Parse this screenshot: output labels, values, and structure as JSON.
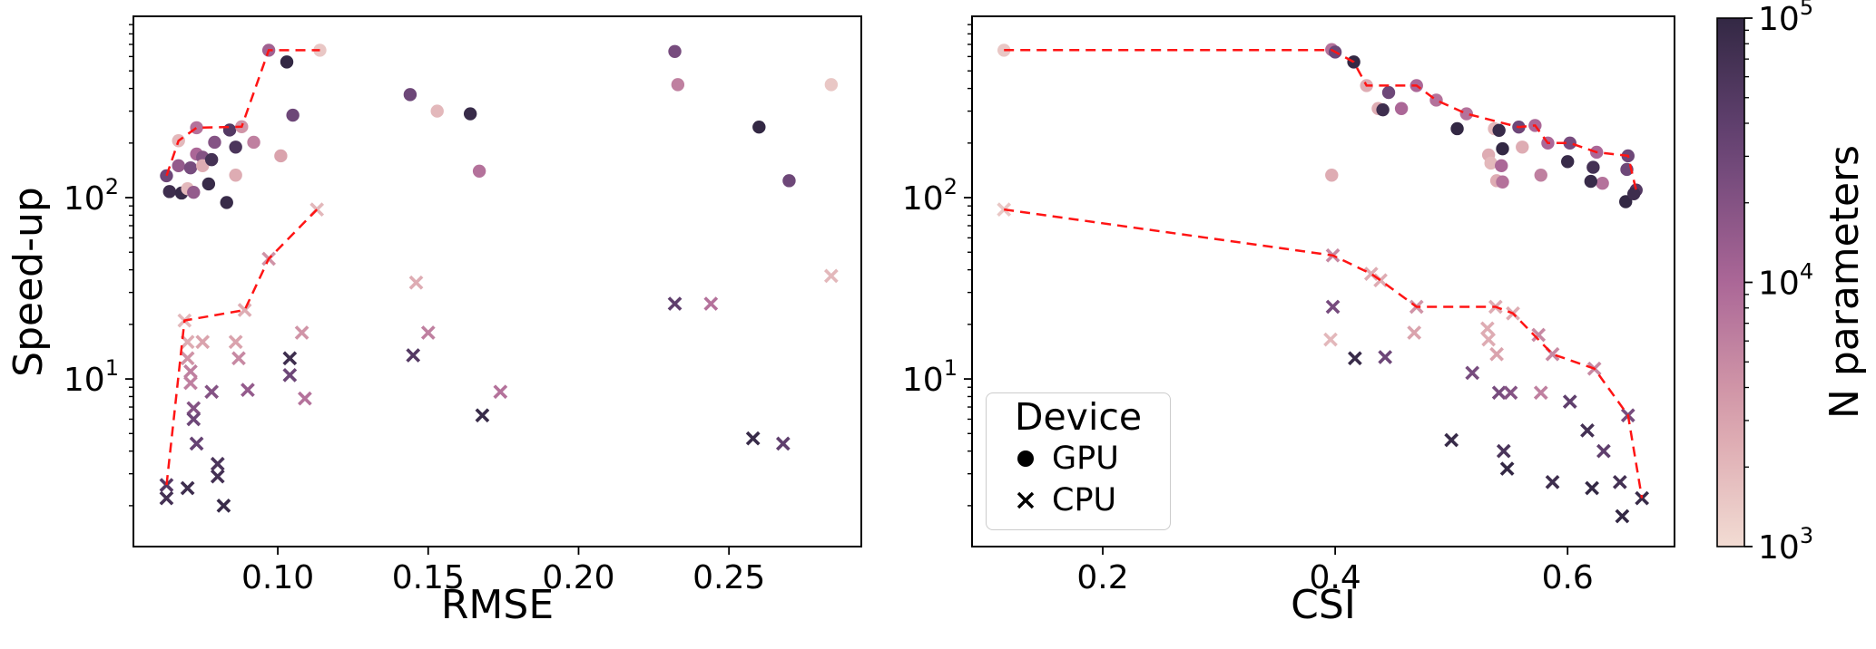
{
  "figure": {
    "background": "#ffffff"
  },
  "legend": {
    "title": "Device",
    "items": [
      {
        "label": "GPU",
        "marker": "circle"
      },
      {
        "label": "CPU",
        "marker": "x"
      }
    ]
  },
  "colorbar": {
    "label": "N parameters",
    "scale": "log",
    "vmin": 1000,
    "vmax": 100000,
    "tick_exponents": [
      5,
      4,
      3
    ]
  },
  "style": {
    "front_color": "#ff1414",
    "axis_color": "#000000",
    "colormap_stops": [
      [
        3.0,
        "#f2dcd3"
      ],
      [
        3.5,
        "#d9a0ab"
      ],
      [
        4.0,
        "#ab6797"
      ],
      [
        4.5,
        "#6a4577"
      ],
      [
        5.0,
        "#332844"
      ]
    ]
  },
  "chart_data": [
    {
      "type": "scatter",
      "xlabel": "RMSE",
      "ylabel": "Speed-up",
      "x_axis": {
        "scale": "linear",
        "lim": [
          0.052,
          0.294
        ],
        "ticks": [
          0.1,
          0.15,
          0.2,
          0.25
        ],
        "tick_labels": [
          "0.10",
          "0.15",
          "0.20",
          "0.25"
        ]
      },
      "y_axis": {
        "scale": "log",
        "lim": [
          1.19,
          1000
        ],
        "tick_exponents": [
          1,
          2
        ]
      },
      "series": [
        {
          "name": "GPU",
          "marker": "circle",
          "points": [
            [
              0.063,
              132,
              30000
            ],
            [
              0.064,
              108,
              80000
            ],
            [
              0.067,
              206,
              2000
            ],
            [
              0.067,
              150,
              15000
            ],
            [
              0.068,
              106,
              90000
            ],
            [
              0.07,
              112,
              2000
            ],
            [
              0.071,
              146,
              25000
            ],
            [
              0.072,
              107,
              15000
            ],
            [
              0.073,
              243,
              8000
            ],
            [
              0.073,
              174,
              10000
            ],
            [
              0.075,
              167,
              20000
            ],
            [
              0.075,
              150,
              2500
            ],
            [
              0.077,
              119,
              90000
            ],
            [
              0.078,
              162,
              70000
            ],
            [
              0.079,
              202,
              20000
            ],
            [
              0.083,
              94,
              90000
            ],
            [
              0.084,
              236,
              50000
            ],
            [
              0.086,
              190,
              60000
            ],
            [
              0.086,
              133,
              2500
            ],
            [
              0.088,
              246,
              4000
            ],
            [
              0.092,
              202,
              6000
            ],
            [
              0.097,
              650,
              12000
            ],
            [
              0.101,
              170,
              3000
            ],
            [
              0.103,
              560,
              100000
            ],
            [
              0.105,
              285,
              30000
            ],
            [
              0.114,
              650,
              1500
            ],
            [
              0.144,
              370,
              30000
            ],
            [
              0.153,
              300,
              2000
            ],
            [
              0.164,
              290,
              90000
            ],
            [
              0.167,
              140,
              8000
            ],
            [
              0.232,
              640,
              25000
            ],
            [
              0.233,
              420,
              6000
            ],
            [
              0.26,
              245,
              100000
            ],
            [
              0.27,
              124,
              30000
            ],
            [
              0.284,
              420,
              1500
            ]
          ]
        },
        {
          "name": "CPU",
          "marker": "x",
          "points": [
            [
              0.063,
              2.6,
              50000
            ],
            [
              0.063,
              2.2,
              70000
            ],
            [
              0.069,
              21,
              2000
            ],
            [
              0.07,
              16,
              2500
            ],
            [
              0.07,
              13,
              4000
            ],
            [
              0.071,
              11,
              6000
            ],
            [
              0.071,
              9.5,
              6000
            ],
            [
              0.072,
              6.9,
              20000
            ],
            [
              0.072,
              6.0,
              30000
            ],
            [
              0.073,
              4.4,
              35000
            ],
            [
              0.07,
              2.5,
              80000
            ],
            [
              0.075,
              16,
              3000
            ],
            [
              0.078,
              8.5,
              20000
            ],
            [
              0.08,
              3.4,
              60000
            ],
            [
              0.08,
              2.9,
              70000
            ],
            [
              0.082,
              2.0,
              90000
            ],
            [
              0.086,
              16,
              3000
            ],
            [
              0.087,
              13,
              5000
            ],
            [
              0.089,
              24,
              2500
            ],
            [
              0.09,
              8.7,
              15000
            ],
            [
              0.097,
              46,
              4000
            ],
            [
              0.104,
              13,
              80000
            ],
            [
              0.104,
              10.5,
              30000
            ],
            [
              0.108,
              18,
              4000
            ],
            [
              0.109,
              7.8,
              8000
            ],
            [
              0.113,
              86,
              2000
            ],
            [
              0.146,
              34,
              2500
            ],
            [
              0.15,
              18,
              6000
            ],
            [
              0.145,
              13.5,
              50000
            ],
            [
              0.168,
              6.3,
              90000
            ],
            [
              0.174,
              8.5,
              8000
            ],
            [
              0.232,
              26,
              40000
            ],
            [
              0.244,
              26,
              8000
            ],
            [
              0.284,
              37,
              2000
            ],
            [
              0.258,
              4.7,
              90000
            ],
            [
              0.268,
              4.4,
              40000
            ]
          ]
        }
      ],
      "pareto_fronts": [
        {
          "name": "gpu-front",
          "points": [
            [
              0.063,
              132
            ],
            [
              0.067,
              206
            ],
            [
              0.073,
              243
            ],
            [
              0.088,
              246
            ],
            [
              0.097,
              650
            ],
            [
              0.114,
              650
            ]
          ]
        },
        {
          "name": "cpu-front",
          "points": [
            [
              0.063,
              2.6
            ],
            [
              0.069,
              21
            ],
            [
              0.089,
              24
            ],
            [
              0.097,
              46
            ],
            [
              0.113,
              86
            ]
          ]
        }
      ]
    },
    {
      "type": "scatter",
      "xlabel": "CSI",
      "ylabel": "",
      "x_axis": {
        "scale": "linear",
        "lim": [
          0.0875,
          0.692
        ],
        "ticks": [
          0.2,
          0.4,
          0.6
        ],
        "tick_labels": [
          "0.2",
          "0.4",
          "0.6"
        ]
      },
      "y_axis": {
        "scale": "log",
        "lim": [
          1.19,
          1000
        ],
        "tick_exponents": [
          1,
          2
        ]
      },
      "series": [
        {
          "name": "GPU",
          "marker": "circle",
          "points": [
            [
              0.115,
              650,
              1500
            ],
            [
              0.397,
              655,
              8000
            ],
            [
              0.4,
              635,
              30000
            ],
            [
              0.416,
              560,
              100000
            ],
            [
              0.427,
              415,
              2500
            ],
            [
              0.446,
              380,
              30000
            ],
            [
              0.437,
              310,
              2500
            ],
            [
              0.441,
              305,
              80000
            ],
            [
              0.457,
              310,
              10000
            ],
            [
              0.47,
              415,
              10000
            ],
            [
              0.397,
              133,
              2500
            ],
            [
              0.487,
              345,
              8000
            ],
            [
              0.513,
              290,
              8000
            ],
            [
              0.505,
              240,
              100000
            ],
            [
              0.537,
              240,
              2000
            ],
            [
              0.541,
              235,
              90000
            ],
            [
              0.558,
              245,
              30000
            ],
            [
              0.572,
              250,
              10000
            ],
            [
              0.544,
              186,
              100000
            ],
            [
              0.561,
              190,
              2500
            ],
            [
              0.583,
              200,
              10000
            ],
            [
              0.602,
              200,
              25000
            ],
            [
              0.625,
              178,
              10000
            ],
            [
              0.652,
              170,
              30000
            ],
            [
              0.6,
              158,
              90000
            ],
            [
              0.532,
              172,
              2500
            ],
            [
              0.534,
              155,
              2000
            ],
            [
              0.543,
              150,
              10000
            ],
            [
              0.539,
              124,
              2500
            ],
            [
              0.544,
              122,
              8000
            ],
            [
              0.577,
              133,
              6000
            ],
            [
              0.622,
              147,
              70000
            ],
            [
              0.63,
              120,
              8000
            ],
            [
              0.62,
              123,
              90000
            ],
            [
              0.651,
              143,
              30000
            ],
            [
              0.659,
              110,
              50000
            ],
            [
              0.65,
              95,
              100000
            ],
            [
              0.657,
              105,
              80000
            ]
          ]
        },
        {
          "name": "CPU",
          "marker": "x",
          "points": [
            [
              0.115,
              86,
              1500
            ],
            [
              0.398,
              48,
              5000
            ],
            [
              0.431,
              38,
              2500
            ],
            [
              0.439,
              35,
              2500
            ],
            [
              0.398,
              25,
              25000
            ],
            [
              0.47,
              25,
              4000
            ],
            [
              0.468,
              18,
              3000
            ],
            [
              0.396,
              16.5,
              2000
            ],
            [
              0.417,
              13,
              90000
            ],
            [
              0.443,
              13.2,
              30000
            ],
            [
              0.538,
              25,
              2500
            ],
            [
              0.553,
              23,
              2500
            ],
            [
              0.531,
              19,
              2500
            ],
            [
              0.532,
              16.5,
              2500
            ],
            [
              0.539,
              13.7,
              3000
            ],
            [
              0.575,
              17.5,
              5000
            ],
            [
              0.587,
              13.7,
              5000
            ],
            [
              0.623,
              11.4,
              5000
            ],
            [
              0.518,
              10.8,
              25000
            ],
            [
              0.541,
              8.4,
              25000
            ],
            [
              0.551,
              8.4,
              20000
            ],
            [
              0.577,
              8.4,
              6000
            ],
            [
              0.602,
              7.5,
              40000
            ],
            [
              0.652,
              6.3,
              25000
            ],
            [
              0.5,
              4.6,
              90000
            ],
            [
              0.545,
              4.0,
              60000
            ],
            [
              0.617,
              5.2,
              70000
            ],
            [
              0.631,
              4.0,
              40000
            ],
            [
              0.548,
              3.2,
              100000
            ],
            [
              0.587,
              2.7,
              80000
            ],
            [
              0.621,
              2.5,
              100000
            ],
            [
              0.645,
              2.7,
              70000
            ],
            [
              0.664,
              2.2,
              90000
            ],
            [
              0.647,
              1.75,
              100000
            ]
          ]
        }
      ],
      "pareto_fronts": [
        {
          "name": "gpu-front",
          "points": [
            [
              0.115,
              652
            ],
            [
              0.397,
              652
            ],
            [
              0.416,
              560
            ],
            [
              0.427,
              415
            ],
            [
              0.47,
              415
            ],
            [
              0.487,
              345
            ],
            [
              0.513,
              290
            ],
            [
              0.558,
              245
            ],
            [
              0.572,
              250
            ],
            [
              0.583,
              200
            ],
            [
              0.602,
              200
            ],
            [
              0.625,
              178
            ],
            [
              0.652,
              170
            ],
            [
              0.659,
              110
            ],
            [
              0.661,
              103
            ]
          ]
        },
        {
          "name": "cpu-front",
          "points": [
            [
              0.115,
              86
            ],
            [
              0.398,
              48
            ],
            [
              0.431,
              38
            ],
            [
              0.439,
              35
            ],
            [
              0.47,
              25
            ],
            [
              0.538,
              25
            ],
            [
              0.553,
              23
            ],
            [
              0.587,
              13.7
            ],
            [
              0.623,
              11.4
            ],
            [
              0.652,
              6.3
            ],
            [
              0.664,
              2.2
            ]
          ]
        }
      ]
    }
  ]
}
